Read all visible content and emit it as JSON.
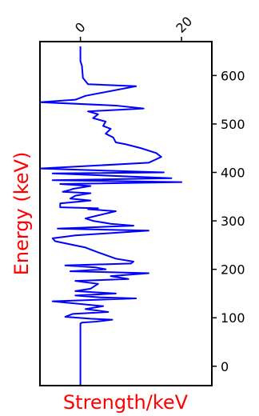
{
  "chart_data": {
    "type": "line",
    "orientation": "vertical",
    "title": "",
    "xlabel": "Strength/keV",
    "ylabel": "Energy (keV)",
    "x_axis_position": "top",
    "y_axis_position": "right",
    "xlim": [
      -8,
      26
    ],
    "ylim": [
      -40,
      670
    ],
    "x_ticks": [
      0,
      20
    ],
    "x_tick_labels": [
      "0",
      "20"
    ],
    "y_ticks": [
      0,
      100,
      200,
      300,
      400,
      500,
      600
    ],
    "y_tick_labels": [
      "0",
      "100",
      "200",
      "300",
      "400",
      "500",
      "600"
    ],
    "grid": false,
    "colors": {
      "line": "#0000ff",
      "label": "#ff0000",
      "axis": "#000000"
    },
    "series": [
      {
        "points": [
          [
            0,
            -40
          ],
          [
            0,
            88
          ],
          [
            0.3,
            90
          ],
          [
            3,
            92
          ],
          [
            6.3,
            96
          ],
          [
            2,
            98
          ],
          [
            -3,
            102
          ],
          [
            -1.5,
            108
          ],
          [
            5.5,
            112
          ],
          [
            1,
            118
          ],
          [
            4.5,
            124
          ],
          [
            -5.5,
            134
          ],
          [
            11,
            140
          ],
          [
            4,
            142
          ],
          [
            -1,
            146
          ],
          [
            7,
            150
          ],
          [
            -1,
            155
          ],
          [
            2,
            160
          ],
          [
            3.5,
            170
          ],
          [
            -1,
            176
          ],
          [
            9.5,
            180
          ],
          [
            6,
            186
          ],
          [
            13.5,
            192
          ],
          [
            -2,
            196
          ],
          [
            5,
            200
          ],
          [
            3,
            204
          ],
          [
            -3,
            208
          ],
          [
            10,
            212
          ],
          [
            10.5,
            216
          ],
          [
            7,
            222
          ],
          [
            3.5,
            235
          ],
          [
            1,
            245
          ],
          [
            -5,
            258
          ],
          [
            -5.5,
            264
          ],
          [
            -1,
            270
          ],
          [
            13.5,
            280
          ],
          [
            -4.5,
            284
          ],
          [
            10.5,
            290
          ],
          [
            6,
            294
          ],
          [
            2.5,
            300
          ],
          [
            1,
            305
          ],
          [
            3,
            310
          ],
          [
            7,
            320
          ],
          [
            1.5,
            324
          ],
          [
            3.5,
            326
          ],
          [
            -4,
            328
          ],
          [
            -4,
            336
          ],
          [
            2,
            342
          ],
          [
            -2,
            346
          ],
          [
            -1,
            352
          ],
          [
            2,
            357
          ],
          [
            -3.5,
            360
          ],
          [
            -2,
            364
          ],
          [
            -1.5,
            366
          ],
          [
            2,
            372
          ],
          [
            -4,
            376
          ],
          [
            20,
            380
          ],
          [
            -5.5,
            384
          ],
          [
            18,
            388
          ],
          [
            -5.5,
            398
          ],
          [
            16.5,
            400
          ],
          [
            -8,
            408
          ],
          [
            13.5,
            420
          ],
          [
            16,
            432
          ],
          [
            15,
            440
          ],
          [
            12,
            450
          ],
          [
            9,
            458
          ],
          [
            7,
            462
          ],
          [
            6.5,
            472
          ],
          [
            5,
            480
          ],
          [
            6,
            490
          ],
          [
            4.5,
            496
          ],
          [
            5,
            505
          ],
          [
            2.5,
            512
          ],
          [
            3.5,
            520
          ],
          [
            1.5,
            526
          ],
          [
            12.5,
            532
          ],
          [
            7,
            538
          ],
          [
            -8,
            545
          ],
          [
            -1,
            550
          ],
          [
            1,
            558
          ],
          [
            11,
            578
          ],
          [
            1.5,
            582
          ],
          [
            0.5,
            595
          ],
          [
            0.3,
            620
          ],
          [
            0,
            630
          ],
          [
            0,
            660
          ]
        ]
      }
    ]
  }
}
